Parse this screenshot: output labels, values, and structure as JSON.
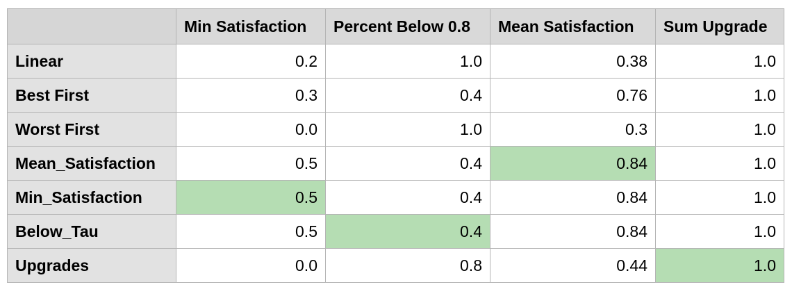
{
  "chart_data": {
    "type": "table",
    "columns": [
      "Min Satisfaction",
      "Percent Below 0.8",
      "Mean Satisfaction",
      "Sum Upgrade"
    ],
    "rows": [
      {
        "label": "Linear",
        "values": [
          "0.2",
          "1.0",
          "0.38",
          "1.0"
        ],
        "highlight": -1
      },
      {
        "label": "Best First",
        "values": [
          "0.3",
          "0.4",
          "0.76",
          "1.0"
        ],
        "highlight": -1
      },
      {
        "label": "Worst First",
        "values": [
          "0.0",
          "1.0",
          "0.3",
          "1.0"
        ],
        "highlight": -1
      },
      {
        "label": "Mean_Satisfaction",
        "values": [
          "0.5",
          "0.4",
          "0.84",
          "1.0"
        ],
        "highlight": 2
      },
      {
        "label": "Min_Satisfaction",
        "values": [
          "0.5",
          "0.4",
          "0.84",
          "1.0"
        ],
        "highlight": 0
      },
      {
        "label": "Below_Tau",
        "values": [
          "0.5",
          "0.4",
          "0.84",
          "1.0"
        ],
        "highlight": 1
      },
      {
        "label": "Upgrades",
        "values": [
          "0.0",
          "0.8",
          "0.44",
          "1.0"
        ],
        "highlight": 3
      }
    ],
    "colors": {
      "header_bg": "#d9d9d9",
      "row_label_bg": "#e2e2e2",
      "highlight": "#b5ddb3",
      "border": "#b4b4b4"
    }
  }
}
